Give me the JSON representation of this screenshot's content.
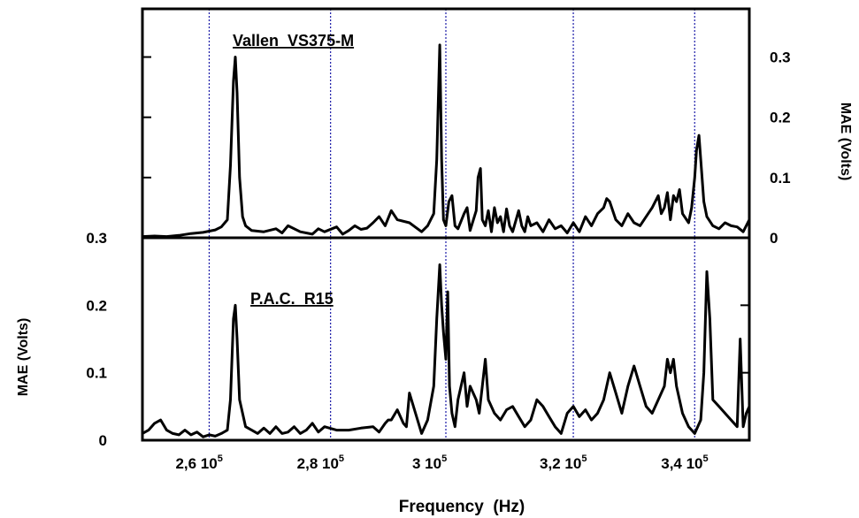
{
  "chart_data": [
    {
      "type": "line",
      "panel": "top",
      "title": "Vallen  VS375-M",
      "xlabel": "",
      "ylabel": "MAE (Volts)",
      "ylabel_side": "right",
      "xlim": [
        250000,
        350000
      ],
      "ylim": [
        0,
        0.38
      ],
      "yticks": [
        0,
        0.1,
        0.2,
        0.3
      ],
      "ytick_labels": [
        "0",
        "0.1",
        "0.2",
        "0.3"
      ],
      "grid_x": [
        261000,
        281000,
        300000,
        321000,
        341000
      ],
      "grid": true,
      "series": [
        {
          "x": [
            250000,
            252000,
            254000,
            256000,
            258000,
            260000,
            262000,
            263000,
            264000,
            264500,
            265000,
            265300,
            265600,
            266000,
            266500,
            267000,
            268000,
            270000,
            272000,
            273000,
            274000,
            276000,
            278000,
            279000,
            280000,
            282000,
            283000,
            284000,
            285000,
            286000,
            287000,
            288000,
            289000,
            290000,
            291000,
            292000,
            294000,
            296000,
            297000,
            298000,
            298500,
            299000,
            299300,
            299600,
            300000,
            300500,
            301000,
            301500,
            302000,
            303000,
            303500,
            304000,
            305000,
            305300,
            305700,
            306000,
            306500,
            307000,
            307500,
            308000,
            308500,
            309000,
            309500,
            310000,
            310500,
            311000,
            312000,
            312500,
            313000,
            313500,
            314000,
            315000,
            316000,
            317000,
            318000,
            319000,
            320000,
            321000,
            322000,
            323000,
            324000,
            325000,
            326000,
            326500,
            327000,
            328000,
            329000,
            330000,
            331000,
            332000,
            333000,
            334000,
            334500,
            335000,
            335500,
            336000,
            336500,
            337000,
            337500,
            338000,
            338500,
            339000,
            340000,
            340500,
            341000,
            341300,
            341700,
            342000,
            342500,
            343000,
            344000,
            345000,
            346000,
            347000,
            348000,
            349000,
            350000
          ],
          "values": [
            0.002,
            0.003,
            0.002,
            0.004,
            0.007,
            0.009,
            0.013,
            0.018,
            0.03,
            0.12,
            0.26,
            0.3,
            0.24,
            0.1,
            0.035,
            0.02,
            0.012,
            0.01,
            0.015,
            0.008,
            0.02,
            0.01,
            0.006,
            0.015,
            0.01,
            0.018,
            0.006,
            0.012,
            0.02,
            0.014,
            0.016,
            0.025,
            0.035,
            0.02,
            0.045,
            0.03,
            0.025,
            0.01,
            0.02,
            0.04,
            0.13,
            0.32,
            0.13,
            0.03,
            0.02,
            0.06,
            0.07,
            0.02,
            0.015,
            0.04,
            0.05,
            0.012,
            0.045,
            0.1,
            0.115,
            0.03,
            0.02,
            0.045,
            0.01,
            0.05,
            0.025,
            0.035,
            0.01,
            0.048,
            0.02,
            0.01,
            0.045,
            0.02,
            0.01,
            0.035,
            0.02,
            0.025,
            0.01,
            0.03,
            0.015,
            0.02,
            0.008,
            0.025,
            0.01,
            0.035,
            0.02,
            0.04,
            0.05,
            0.065,
            0.06,
            0.03,
            0.02,
            0.04,
            0.025,
            0.02,
            0.035,
            0.05,
            0.06,
            0.07,
            0.04,
            0.05,
            0.075,
            0.03,
            0.07,
            0.06,
            0.08,
            0.04,
            0.025,
            0.05,
            0.1,
            0.145,
            0.17,
            0.13,
            0.06,
            0.035,
            0.02,
            0.015,
            0.025,
            0.02,
            0.018,
            0.01,
            0.03
          ]
        }
      ]
    },
    {
      "type": "line",
      "panel": "bottom",
      "title": "P.A.C.  R15",
      "xlabel": "Frequency  (Hz)",
      "ylabel": "MAE (Volts)",
      "ylabel_side": "left",
      "xlim": [
        250000,
        350000
      ],
      "ylim": [
        0,
        0.3
      ],
      "yticks": [
        0,
        0.1,
        0.2,
        0.3
      ],
      "ytick_labels": [
        "0",
        "0.1",
        "0.2",
        "0.3"
      ],
      "xticks": [
        {
          "value": 261000,
          "label": "2,6 10",
          "exp": "5"
        },
        {
          "value": 281000,
          "label": "2,8 10",
          "exp": "5"
        },
        {
          "value": 300000,
          "label": "3 10",
          "exp": "5"
        },
        {
          "value": 321000,
          "label": "3,2 10",
          "exp": "5"
        },
        {
          "value": 341000,
          "label": "3,4 10",
          "exp": "5"
        }
      ],
      "grid_x": [
        261000,
        281000,
        300000,
        321000,
        341000
      ],
      "grid": true,
      "series": [
        {
          "x": [
            250000,
            251000,
            252000,
            253000,
            254000,
            255000,
            256000,
            257000,
            258000,
            259000,
            260000,
            261000,
            262000,
            263000,
            264000,
            264500,
            265000,
            265300,
            265600,
            266000,
            267000,
            268000,
            269000,
            270000,
            271000,
            272000,
            273000,
            274000,
            275000,
            276000,
            277000,
            278000,
            279000,
            280000,
            282000,
            284000,
            286000,
            288000,
            289000,
            290000,
            290500,
            291000,
            292000,
            293000,
            293500,
            294000,
            295000,
            296000,
            297000,
            298000,
            298500,
            299000,
            299300,
            299600,
            300000,
            300300,
            300600,
            301000,
            301500,
            302000,
            303000,
            303500,
            304000,
            305000,
            305500,
            306000,
            306500,
            307000,
            308000,
            309000,
            310000,
            311000,
            312000,
            313000,
            314000,
            315000,
            316000,
            317000,
            318000,
            319000,
            320000,
            321000,
            322000,
            323000,
            324000,
            325000,
            326000,
            327000,
            328000,
            329000,
            330000,
            331000,
            332000,
            333000,
            334000,
            335000,
            336000,
            336500,
            337000,
            337500,
            338000,
            339000,
            340000,
            341000,
            342000,
            342500,
            343000,
            343500,
            344000,
            345000,
            346000,
            347000,
            348000,
            348500,
            349000,
            349500,
            350000
          ],
          "values": [
            0.01,
            0.015,
            0.025,
            0.03,
            0.015,
            0.01,
            0.008,
            0.015,
            0.008,
            0.012,
            0.005,
            0.008,
            0.006,
            0.01,
            0.015,
            0.06,
            0.18,
            0.2,
            0.15,
            0.06,
            0.02,
            0.015,
            0.01,
            0.018,
            0.01,
            0.02,
            0.01,
            0.012,
            0.02,
            0.01,
            0.015,
            0.025,
            0.012,
            0.02,
            0.015,
            0.015,
            0.018,
            0.02,
            0.012,
            0.025,
            0.03,
            0.03,
            0.045,
            0.025,
            0.02,
            0.07,
            0.04,
            0.01,
            0.03,
            0.08,
            0.18,
            0.26,
            0.2,
            0.16,
            0.12,
            0.22,
            0.08,
            0.04,
            0.02,
            0.06,
            0.1,
            0.05,
            0.08,
            0.06,
            0.04,
            0.08,
            0.12,
            0.06,
            0.04,
            0.03,
            0.045,
            0.05,
            0.035,
            0.02,
            0.03,
            0.06,
            0.05,
            0.035,
            0.02,
            0.01,
            0.04,
            0.05,
            0.035,
            0.045,
            0.03,
            0.04,
            0.06,
            0.1,
            0.07,
            0.04,
            0.08,
            0.11,
            0.08,
            0.05,
            0.04,
            0.06,
            0.08,
            0.12,
            0.1,
            0.12,
            0.08,
            0.04,
            0.02,
            0.01,
            0.03,
            0.1,
            0.25,
            0.18,
            0.06,
            0.05,
            0.04,
            0.03,
            0.02,
            0.15,
            0.02,
            0.04,
            0.05
          ]
        }
      ]
    }
  ]
}
